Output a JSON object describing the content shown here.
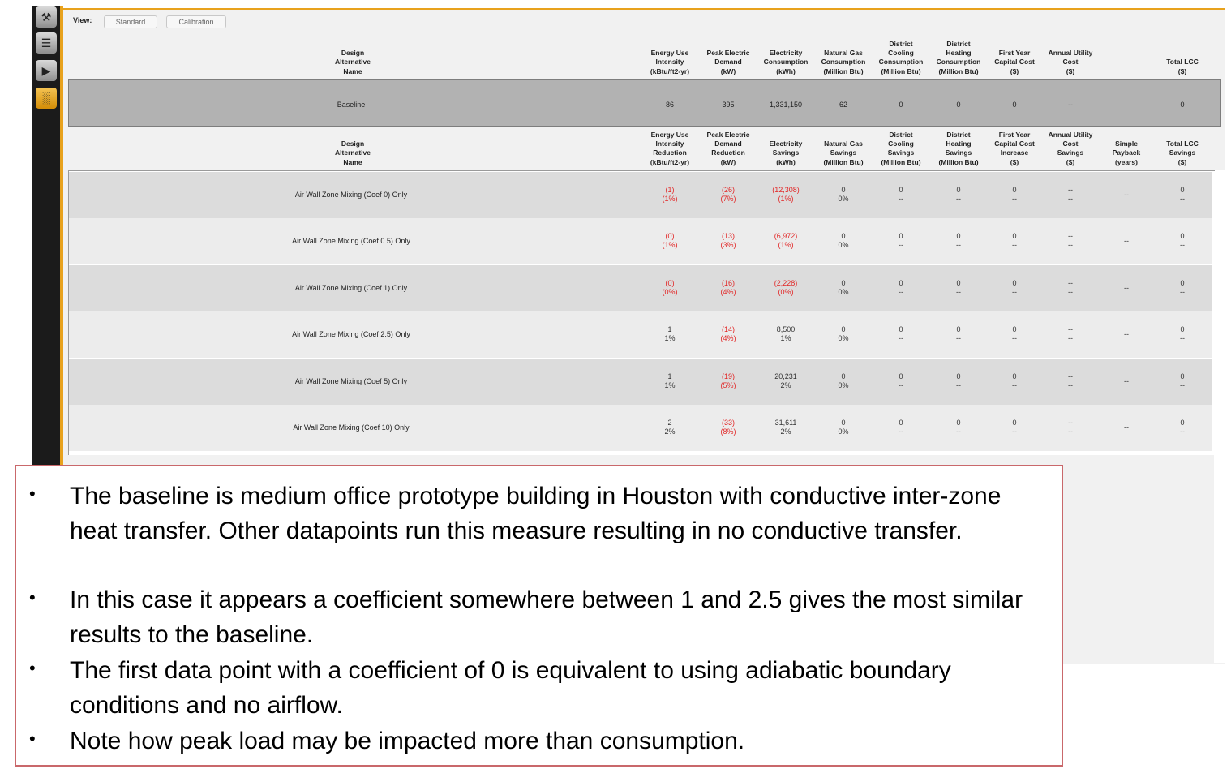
{
  "toolbar": {
    "icons": [
      "wrench-icon",
      "measures-icon",
      "run-icon",
      "results-icon"
    ],
    "glyphs": [
      "⚒",
      "☰",
      "▶",
      "░"
    ]
  },
  "view": {
    "label": "View:",
    "buttons": [
      "Standard",
      "Calibration"
    ]
  },
  "baseline_headers": [
    "Design\nAlternative\nName",
    "Energy Use\nIntensity\n(kBtu/ft2-yr)",
    "Peak Electric\nDemand\n(kW)",
    "Electricity\nConsumption\n(kWh)",
    "Natural Gas\nConsumption\n(Million Btu)",
    "District\nCooling\nConsumption\n(Million Btu)",
    "District\nHeating\nConsumption\n(Million Btu)",
    "First Year\nCapital Cost\n($)",
    "Annual Utility\nCost\n($)",
    "",
    "Total LCC\n($)"
  ],
  "baseline": {
    "name": "Baseline",
    "values": [
      "86",
      "395",
      "1,331,150",
      "62",
      "0",
      "0",
      "0",
      "--",
      "",
      "0"
    ]
  },
  "savings_headers": [
    "Design\nAlternative\nName",
    "Energy Use\nIntensity\nReduction\n(kBtu/ft2-yr)",
    "Peak Electric\nDemand\nReduction\n(kW)",
    "Electricity\nSavings\n(kWh)",
    "Natural Gas\nSavings\n(Million Btu)",
    "District\nCooling\nSavings\n(Million Btu)",
    "District\nHeating\nSavings\n(Million Btu)",
    "First Year\nCapital Cost\nIncrease\n($)",
    "Annual Utility\nCost\nSavings\n($)",
    "Simple\nPayback\n(years)",
    "Total LCC\nSavings\n($)"
  ],
  "rows": [
    {
      "name": "Air Wall Zone Mixing  (Coef 0) Only",
      "cells": [
        [
          "(1)\n(1%)",
          true
        ],
        [
          "(26)\n(7%)",
          true
        ],
        [
          "(12,308)\n(1%)",
          true
        ],
        [
          "0\n0%",
          false
        ],
        [
          "0\n--",
          false
        ],
        [
          "0\n--",
          false
        ],
        [
          "0\n--",
          false
        ],
        [
          "--\n--",
          false
        ],
        [
          "--",
          false
        ],
        [
          "0\n--",
          false
        ]
      ]
    },
    {
      "name": "Air Wall Zone Mixing  (Coef 0.5) Only",
      "cells": [
        [
          "(0)\n(1%)",
          true
        ],
        [
          "(13)\n(3%)",
          true
        ],
        [
          "(6,972)\n(1%)",
          true
        ],
        [
          "0\n0%",
          false
        ],
        [
          "0\n--",
          false
        ],
        [
          "0\n--",
          false
        ],
        [
          "0\n--",
          false
        ],
        [
          "--\n--",
          false
        ],
        [
          "--",
          false
        ],
        [
          "0\n--",
          false
        ]
      ]
    },
    {
      "name": "Air Wall Zone Mixing  (Coef 1) Only",
      "cells": [
        [
          "(0)\n(0%)",
          true
        ],
        [
          "(16)\n(4%)",
          true
        ],
        [
          "(2,228)\n(0%)",
          true
        ],
        [
          "0\n0%",
          false
        ],
        [
          "0\n--",
          false
        ],
        [
          "0\n--",
          false
        ],
        [
          "0\n--",
          false
        ],
        [
          "--\n--",
          false
        ],
        [
          "--",
          false
        ],
        [
          "0\n--",
          false
        ]
      ]
    },
    {
      "name": "Air Wall Zone Mixing  (Coef 2.5) Only",
      "cells": [
        [
          "1\n1%",
          false
        ],
        [
          "(14)\n(4%)",
          true
        ],
        [
          "8,500\n1%",
          false
        ],
        [
          "0\n0%",
          false
        ],
        [
          "0\n--",
          false
        ],
        [
          "0\n--",
          false
        ],
        [
          "0\n--",
          false
        ],
        [
          "--\n--",
          false
        ],
        [
          "--",
          false
        ],
        [
          "0\n--",
          false
        ]
      ]
    },
    {
      "name": "Air Wall Zone Mixing  (Coef 5) Only",
      "cells": [
        [
          "1\n1%",
          false
        ],
        [
          "(19)\n(5%)",
          true
        ],
        [
          "20,231\n2%",
          false
        ],
        [
          "0\n0%",
          false
        ],
        [
          "0\n--",
          false
        ],
        [
          "0\n--",
          false
        ],
        [
          "0\n--",
          false
        ],
        [
          "--\n--",
          false
        ],
        [
          "--",
          false
        ],
        [
          "0\n--",
          false
        ]
      ]
    },
    {
      "name": "Air Wall Zone Mixing (Coef 10) Only",
      "cells": [
        [
          "2\n2%",
          false
        ],
        [
          "(33)\n(8%)",
          true
        ],
        [
          "31,611\n2%",
          false
        ],
        [
          "0\n0%",
          false
        ],
        [
          "0\n--",
          false
        ],
        [
          "0\n--",
          false
        ],
        [
          "0\n--",
          false
        ],
        [
          "--\n--",
          false
        ],
        [
          "--",
          false
        ],
        [
          "0\n--",
          false
        ]
      ]
    }
  ],
  "notes": [
    "The baseline is medium office prototype building in Houston with conductive inter-zone heat transfer. Other datapoints run this measure resulting in no conductive transfer.",
    "In this case it appears a coefficient somewhere between 1 and 2.5 gives the most similar results to the baseline.",
    "The first data point with a coefficient of 0 is equivalent to using adiabatic boundary conditions and no airflow.",
    "Note how peak load may be impacted more than consumption."
  ],
  "colors": {
    "accent": "#e8a21d",
    "negative": "#e22626",
    "note_border": "#c9686b",
    "baseline_bg": "#b2b2b2"
  }
}
